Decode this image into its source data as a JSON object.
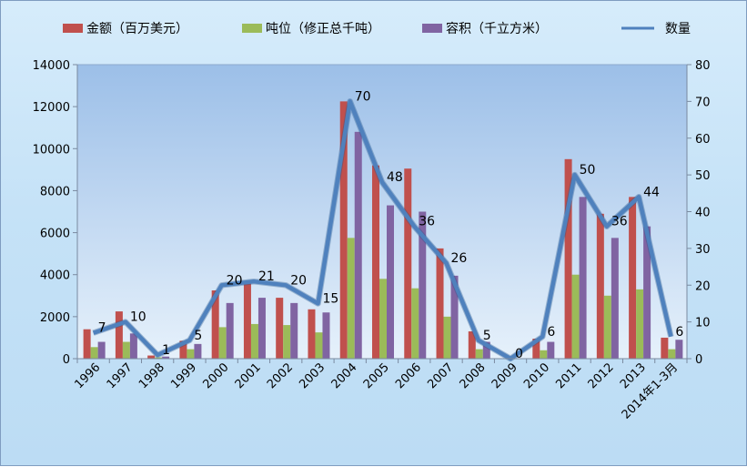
{
  "chart_data": {
    "type": "bar",
    "categories": [
      "1996",
      "1997",
      "1998",
      "1999",
      "2000",
      "2001",
      "2002",
      "2003",
      "2004",
      "2005",
      "2006",
      "2007",
      "2008",
      "2009",
      "2010",
      "2011",
      "2012",
      "2013",
      "2014年1-3月"
    ],
    "series": [
      {
        "name": "金额（百万美元）",
        "type": "bar",
        "axis": "left",
        "color": "#c0504d",
        "values": [
          1400,
          2250,
          150,
          850,
          3250,
          3700,
          2900,
          2350,
          12250,
          9200,
          9050,
          5250,
          1300,
          0,
          950,
          9500,
          6900,
          7700,
          1000
        ]
      },
      {
        "name": "吨位（修正总千吨）",
        "type": "bar",
        "axis": "left",
        "color": "#9bbb59",
        "values": [
          550,
          800,
          60,
          450,
          1500,
          1650,
          1600,
          1250,
          5750,
          3800,
          3350,
          2000,
          450,
          0,
          400,
          4000,
          3000,
          3300,
          450
        ]
      },
      {
        "name": "容积（千立方米）",
        "type": "bar",
        "axis": "left",
        "color": "#8064a2",
        "values": [
          800,
          1200,
          100,
          700,
          2650,
          2900,
          2650,
          2200,
          10800,
          7300,
          7000,
          3950,
          800,
          0,
          800,
          7700,
          5750,
          6300,
          900
        ]
      },
      {
        "name": "数量",
        "type": "line",
        "axis": "right",
        "color": "#4f81bd",
        "values": [
          7,
          10,
          1,
          5,
          20,
          21,
          20,
          15,
          70,
          48,
          36,
          26,
          5,
          0,
          6,
          50,
          36,
          44,
          6
        ]
      }
    ],
    "data_labels": [
      "7",
      "10",
      "1",
      "5",
      "20",
      "21",
      "20",
      "15",
      "70",
      "48",
      "36",
      "26",
      "5",
      "0",
      "6",
      "50",
      "36",
      "44",
      "6"
    ],
    "y_left": {
      "min": 0,
      "max": 14000,
      "step": 2000,
      "ticks": [
        "0",
        "2000",
        "4000",
        "6000",
        "8000",
        "10000",
        "12000",
        "14000"
      ]
    },
    "y_right": {
      "min": 0,
      "max": 80,
      "step": 10,
      "ticks": [
        "0",
        "10",
        "20",
        "30",
        "40",
        "50",
        "60",
        "70",
        "80"
      ]
    },
    "legend": {
      "position": "top"
    },
    "grid": false
  }
}
